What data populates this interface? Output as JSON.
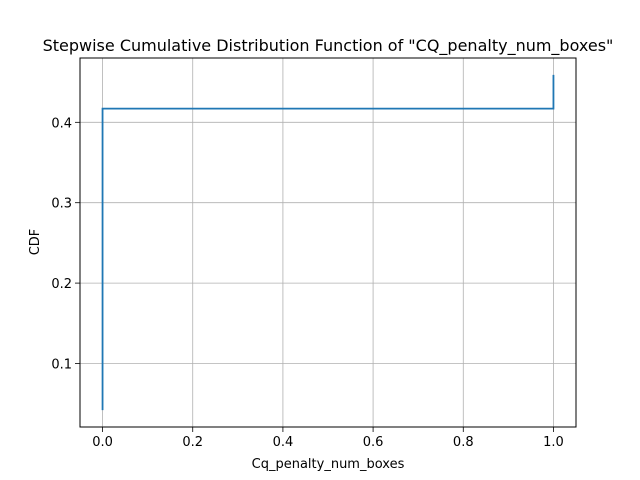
{
  "chart_data": {
    "type": "line",
    "drawstyle": "steps-post",
    "title": "Stepwise Cumulative Distribution Function of \"CQ_penalty_num_boxes\"",
    "xlabel": "Cq_penalty_num_boxes",
    "ylabel": "CDF",
    "xlim": [
      -0.05,
      1.05
    ],
    "ylim": [
      0.021,
      0.48
    ],
    "xticks": [
      0.0,
      0.2,
      0.4,
      0.6,
      0.8,
      1.0
    ],
    "xtick_labels": [
      "0.0",
      "0.2",
      "0.4",
      "0.6",
      "0.8",
      "1.0"
    ],
    "yticks": [
      0.1,
      0.2,
      0.3,
      0.4
    ],
    "ytick_labels": [
      "0.1",
      "0.2",
      "0.3",
      "0.4"
    ],
    "grid": true,
    "series": [
      {
        "color": "#1f77b4",
        "x": [
          0.0,
          0.0,
          1.0,
          1.0
        ],
        "y": [
          0.042,
          0.417,
          0.417,
          0.459
        ]
      }
    ]
  }
}
